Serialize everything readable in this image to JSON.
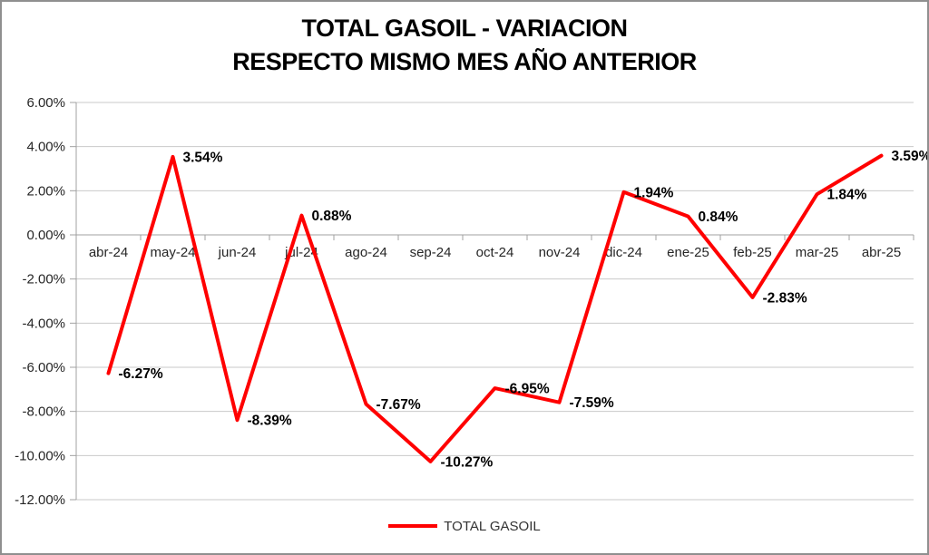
{
  "title": {
    "line1": "TOTAL GASOIL - VARIACION",
    "line2": "RESPECTO MISMO MES AÑO ANTERIOR"
  },
  "legend": {
    "label": "TOTAL GASOIL"
  },
  "colors": {
    "line": "#FF0000",
    "grid": "#C9C9C9",
    "axis": "#A0A0A0",
    "axis_text": "#262626",
    "label_text": "#000000",
    "frame_border": "#8F8F8F"
  },
  "chart_data": {
    "type": "line",
    "title": "TOTAL GASOIL - VARIACION RESPECTO MISMO MES AÑO ANTERIOR",
    "series_name": "TOTAL GASOIL",
    "categories": [
      "abr-24",
      "may-24",
      "jun-24",
      "jul-24",
      "ago-24",
      "sep-24",
      "oct-24",
      "nov-24",
      "dic-24",
      "ene-25",
      "feb-25",
      "mar-25",
      "abr-25"
    ],
    "values": [
      -6.27,
      3.54,
      -8.39,
      0.88,
      -7.67,
      -10.27,
      -6.95,
      -7.59,
      1.94,
      0.84,
      -2.83,
      1.84,
      3.59
    ],
    "point_labels": [
      "-6.27%",
      "3.54%",
      "-8.39%",
      "0.88%",
      "-7.67%",
      "-10.27%",
      "-6.95%",
      "-7.59%",
      "1.94%",
      "0.84%",
      "-2.83%",
      "1.84%",
      "3.59%"
    ],
    "xlabel": "",
    "ylabel": "",
    "ylim": [
      -12,
      6
    ],
    "y_tick_step": 2,
    "y_tick_labels": [
      "6.00%",
      "4.00%",
      "2.00%",
      "0.00%",
      "-2.00%",
      "-4.00%",
      "-6.00%",
      "-8.00%",
      "-10.00%",
      "-12.00%"
    ],
    "grid": true,
    "legend_position": "bottom",
    "line_color": "#FF0000"
  }
}
